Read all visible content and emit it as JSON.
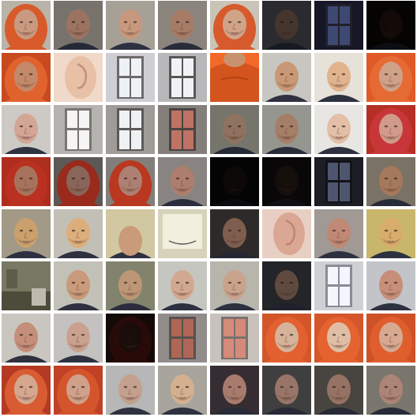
{
  "grid": {
    "rows": 8,
    "cols": 8,
    "tiles": [
      {
        "kind": "face",
        "bg": "#b9b3a8",
        "skin": "#c99a80",
        "hood": "#d85a2a",
        "dark": 0
      },
      {
        "kind": "face",
        "bg": "#8d8781",
        "skin": "#b88872",
        "hood": null,
        "dark": 0.15
      },
      {
        "kind": "face",
        "bg": "#a7a097",
        "skin": "#c7987d",
        "hood": null,
        "dark": 0
      },
      {
        "kind": "face",
        "bg": "#9a948c",
        "skin": "#b98b73",
        "hood": null,
        "dark": 0.1
      },
      {
        "kind": "face",
        "bg": "#c9c3b8",
        "skin": "#d1a389",
        "hood": "#d65a2b",
        "dark": 0
      },
      {
        "kind": "face",
        "bg": "#4f4e55",
        "skin": "#7d6257",
        "hood": null,
        "dark": 0.45
      },
      {
        "kind": "window",
        "bg": "#1b1c30",
        "pane": "#4d5c8f",
        "frame": "#2a2735",
        "dark": 0.2
      },
      {
        "kind": "face",
        "bg": "#140d0a",
        "skin": "#3a2419",
        "hood": null,
        "dark": 0.7
      },
      {
        "kind": "face",
        "bg": "#c84a1e",
        "skin": "#c4896a",
        "hood": "#e0632e",
        "dark": 0
      },
      {
        "kind": "ear",
        "bg": "#f0d9c8",
        "skin": "#e7c0a6",
        "dark": 0
      },
      {
        "kind": "window",
        "bg": "#cfcfd3",
        "pane": "#eef1f6",
        "frame": "#6e6a6a",
        "dark": 0
      },
      {
        "kind": "window",
        "bg": "#b8b8bb",
        "pane": "#f2f2f6",
        "frame": "#5a5656",
        "dark": 0
      },
      {
        "kind": "hoodie",
        "bg": "#f26a2a",
        "fold": "#d4541d",
        "dark": 0
      },
      {
        "kind": "face",
        "bg": "#c8c6c0",
        "skin": "#c99876",
        "hood": null,
        "dark": 0
      },
      {
        "kind": "face",
        "bg": "#e6e2da",
        "skin": "#e1b48e",
        "hood": null,
        "dark": 0
      },
      {
        "kind": "face",
        "bg": "#e05a26",
        "skin": "#cfa188",
        "hood": "#e66a34",
        "dark": 0
      },
      {
        "kind": "face",
        "bg": "#cdc9c4",
        "skin": "#d3a595",
        "hood": null,
        "dark": 0
      },
      {
        "kind": "window",
        "bg": "#b5b3b0",
        "pane": "#f5f5f5",
        "frame": "#7a7472",
        "dark": 0
      },
      {
        "kind": "window",
        "bg": "#9f9c98",
        "pane": "#eef2f4",
        "frame": "#5d5858",
        "dark": 0
      },
      {
        "kind": "window",
        "bg": "#8c8681",
        "pane": "#c97a6a",
        "frame": "#4d4846",
        "dark": 0.05
      },
      {
        "kind": "face",
        "bg": "#8a8a7f",
        "skin": "#a88670",
        "hood": null,
        "dark": 0.15
      },
      {
        "kind": "face",
        "bg": "#a6a7a1",
        "skin": "#b88d74",
        "hood": null,
        "dark": 0.1
      },
      {
        "kind": "face",
        "bg": "#e8e6e2",
        "skin": "#e3bfa7",
        "hood": null,
        "dark": 0
      },
      {
        "kind": "face",
        "bg": "#b52f24",
        "skin": "#d19a8a",
        "hood": "#c9363a",
        "dark": 0
      },
      {
        "kind": "face",
        "bg": "#b73020",
        "skin": "#b27a62",
        "hood": "#c53423",
        "dark": 0.05
      },
      {
        "kind": "face",
        "bg": "#6d6864",
        "skin": "#a2776a",
        "hood": "#b43222",
        "dark": 0.15
      },
      {
        "kind": "face",
        "bg": "#8a8580",
        "skin": "#b8877a",
        "hood": "#c43a22",
        "dark": 0.05
      },
      {
        "kind": "face",
        "bg": "#918c88",
        "skin": "#b78574",
        "hood": null,
        "dark": 0.05
      },
      {
        "kind": "face",
        "bg": "#121012",
        "skin": "#2e211c",
        "hood": null,
        "dark": 0.75
      },
      {
        "kind": "face",
        "bg": "#1b1614",
        "skin": "#3e2b22",
        "hood": null,
        "dark": 0.65
      },
      {
        "kind": "window",
        "bg": "#2a2a36",
        "pane": "#6f7c9e",
        "frame": "#1c1a22",
        "dark": 0.3
      },
      {
        "kind": "face",
        "bg": "#8a7f72",
        "skin": "#b88766",
        "hood": null,
        "dark": 0.1
      },
      {
        "kind": "face",
        "bg": "#a29a86",
        "skin": "#caa06d",
        "hood": null,
        "dark": 0
      },
      {
        "kind": "face",
        "bg": "#c2bfb6",
        "skin": "#dcae7a",
        "hood": null,
        "dark": 0
      },
      {
        "kind": "head",
        "bg": "#d1c7a0",
        "skin": "#c99b79",
        "dark": 0
      },
      {
        "kind": "board",
        "bg": "#d7d2ba",
        "fg": "#f3efdf",
        "dark": 0
      },
      {
        "kind": "face",
        "bg": "#3a3534",
        "skin": "#9f7664",
        "hood": null,
        "dark": 0.2
      },
      {
        "kind": "ear",
        "bg": "#e8cfc3",
        "skin": "#dba795",
        "dark": 0
      },
      {
        "kind": "face",
        "bg": "#a09994",
        "skin": "#c18975",
        "hood": null,
        "dark": 0
      },
      {
        "kind": "face",
        "bg": "#c8b66b",
        "skin": "#d8ac6a",
        "hood": null,
        "dark": 0
      },
      {
        "kind": "room",
        "bg": "#5b5a45",
        "wall": "#8e8d75",
        "dark": 0.15
      },
      {
        "kind": "face",
        "bg": "#c2c1b8",
        "skin": "#c99a7b",
        "hood": null,
        "dark": 0
      },
      {
        "kind": "face",
        "bg": "#8a8b73",
        "skin": "#c8a07c",
        "hood": null,
        "dark": 0.05
      },
      {
        "kind": "face",
        "bg": "#c6c6c0",
        "skin": "#d1a891",
        "hood": null,
        "dark": 0
      },
      {
        "kind": "face",
        "bg": "#b8b5ad",
        "skin": "#c9a38c",
        "hood": null,
        "dark": 0
      },
      {
        "kind": "face",
        "bg": "#33353a",
        "skin": "#8a6b5b",
        "hood": null,
        "dark": 0.3
      },
      {
        "kind": "window",
        "bg": "#cfd0d4",
        "pane": "#f3f6fb",
        "frame": "#8a8c99",
        "dark": 0
      },
      {
        "kind": "face",
        "bg": "#c2c4c9",
        "skin": "#c78e79",
        "hood": null,
        "dark": 0
      },
      {
        "kind": "face",
        "bg": "#c9c6bf",
        "skin": "#c48e7a",
        "hood": null,
        "dark": 0
      },
      {
        "kind": "face",
        "bg": "#c3c2c0",
        "skin": "#caa18f",
        "hood": null,
        "dark": 0
      },
      {
        "kind": "face",
        "bg": "#2a1410",
        "skin": "#3a1e16",
        "hood": "#5a1a12",
        "dark": 0.55
      },
      {
        "kind": "window",
        "bg": "#9a9593",
        "pane": "#b96c5a",
        "frame": "#5e5654",
        "dark": 0.05
      },
      {
        "kind": "window",
        "bg": "#c8c1bc",
        "pane": "#d68a7a",
        "frame": "#7b716d",
        "dark": 0
      },
      {
        "kind": "face",
        "bg": "#d3562a",
        "skin": "#d7b29a",
        "hood": "#e36030",
        "dark": 0
      },
      {
        "kind": "face",
        "bg": "#d4562a",
        "skin": "#e0bea6",
        "hood": "#e4632f",
        "dark": 0
      },
      {
        "kind": "face",
        "bg": "#cf5128",
        "skin": "#d6a990",
        "hood": "#e05e2d",
        "dark": 0
      },
      {
        "kind": "face",
        "bg": "#b43a24",
        "skin": "#d4a78e",
        "hood": "#d85b32",
        "dark": 0
      },
      {
        "kind": "face",
        "bg": "#c14026",
        "skin": "#d0a08a",
        "hood": "#d4542c",
        "dark": 0
      },
      {
        "kind": "face",
        "bg": "#b6b7b6",
        "skin": "#c4a08f",
        "hood": null,
        "dark": 0
      },
      {
        "kind": "face",
        "bg": "#a8a49b",
        "skin": "#d3b08f",
        "hood": null,
        "dark": 0
      },
      {
        "kind": "face",
        "bg": "#3b3337",
        "skin": "#bb8a7c",
        "hood": null,
        "dark": 0.1
      },
      {
        "kind": "face",
        "bg": "#4a4a4b",
        "skin": "#b38a7b",
        "hood": null,
        "dark": 0.15
      },
      {
        "kind": "face",
        "bg": "#55504b",
        "skin": "#b08775",
        "hood": null,
        "dark": 0.15
      },
      {
        "kind": "face",
        "bg": "#8a847a",
        "skin": "#c09584",
        "hood": null,
        "dark": 0.1
      }
    ]
  }
}
